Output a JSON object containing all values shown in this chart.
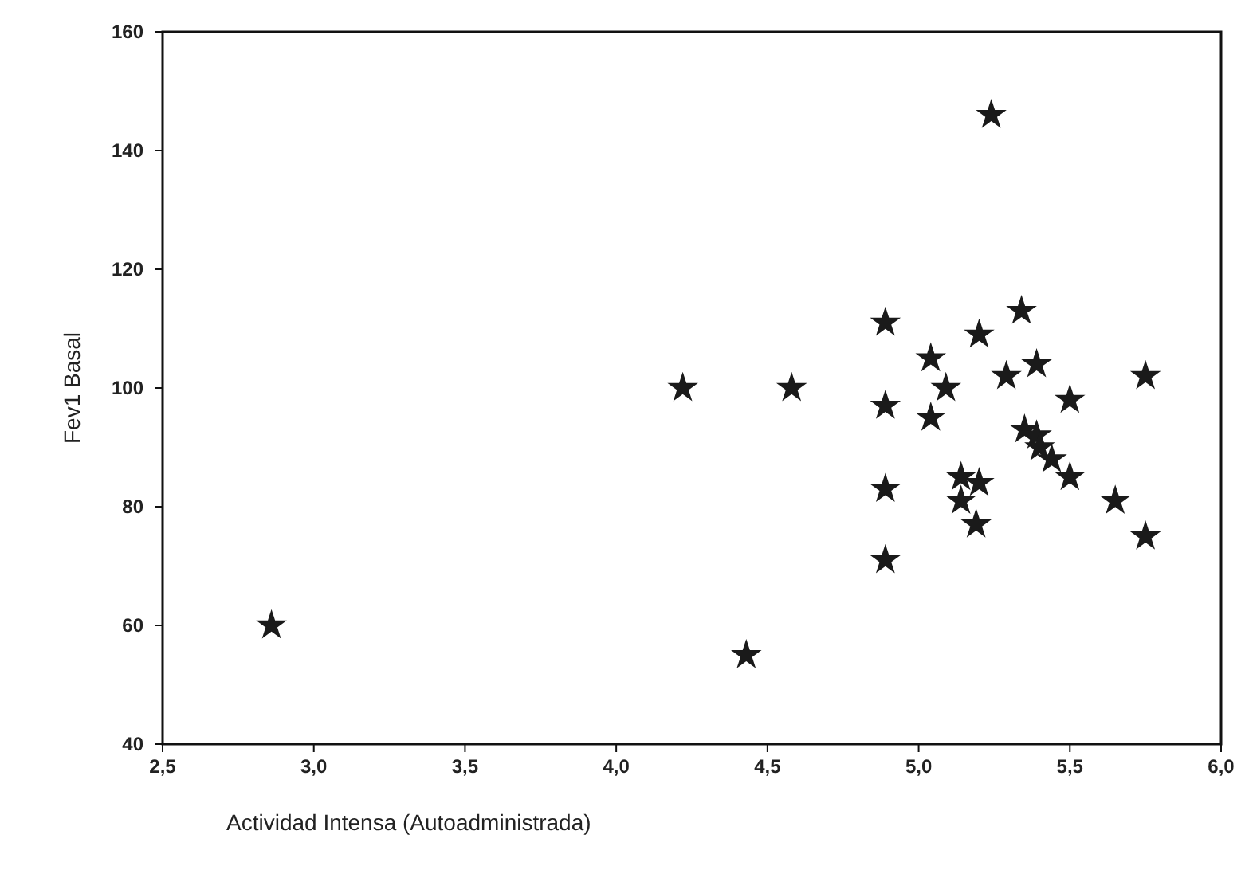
{
  "chart_data": {
    "type": "scatter",
    "xlabel": "Actividad Intensa (Autoadministrada)",
    "ylabel": "Fev1 Basal",
    "marker": "star",
    "color": "#1a1a1a",
    "grid": false,
    "x": [
      5.24,
      4.89,
      5.34,
      5.2,
      5.04,
      5.29,
      5.39,
      5.75,
      4.22,
      4.58,
      5.09,
      4.89,
      5.04,
      5.5,
      5.35,
      5.39,
      5.4,
      5.44,
      5.5,
      5.14,
      5.2,
      5.14,
      4.89,
      5.19,
      5.65,
      5.75,
      4.89,
      4.43,
      2.86
    ],
    "values": [
      146,
      111,
      113,
      109,
      105,
      102,
      104,
      102,
      100,
      100,
      100,
      97,
      95,
      98,
      93,
      92,
      90,
      88,
      85,
      85,
      84,
      81,
      83,
      77,
      81,
      75,
      71,
      55,
      60
    ],
    "xlim": [
      2.5,
      6.0
    ],
    "xticks": [
      {
        "value": 2.5,
        "label": "2,5"
      },
      {
        "value": 3.0,
        "label": "3,0"
      },
      {
        "value": 3.5,
        "label": "3,5"
      },
      {
        "value": 4.0,
        "label": "4,0"
      },
      {
        "value": 4.5,
        "label": "4,5"
      },
      {
        "value": 5.0,
        "label": "5,0"
      },
      {
        "value": 5.5,
        "label": "5,5"
      },
      {
        "value": 6.0,
        "label": "6,0"
      }
    ],
    "ylim": [
      40,
      160
    ],
    "yticks": [
      40,
      60,
      80,
      100,
      120,
      140,
      160
    ]
  }
}
